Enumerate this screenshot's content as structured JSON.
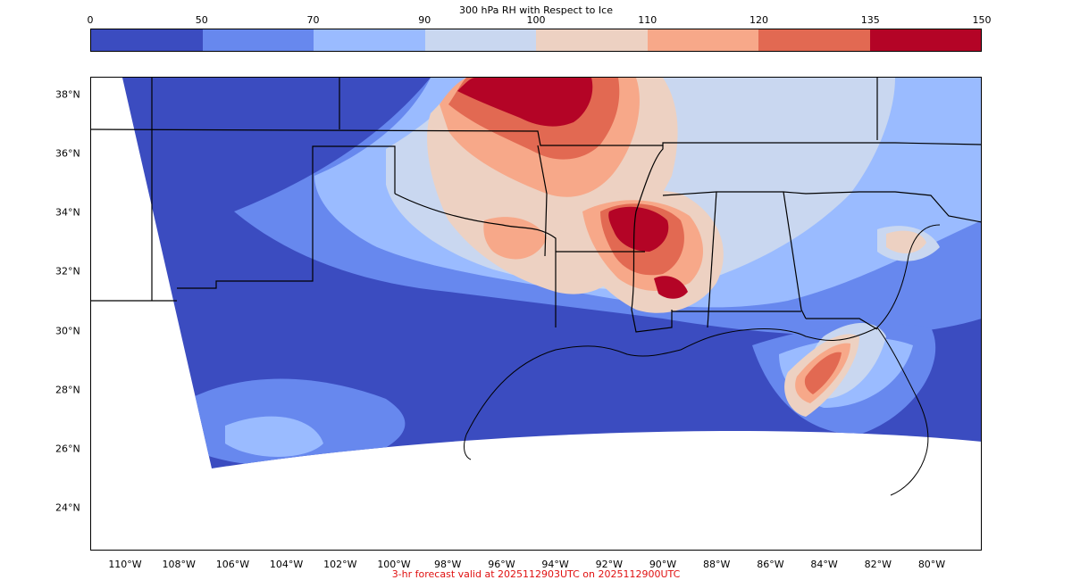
{
  "colorbar": {
    "title": "300 hPa RH with Respect to Ice",
    "levels": [
      "0",
      "50",
      "70",
      "90",
      "100",
      "110",
      "120",
      "135",
      "150"
    ],
    "colors": [
      "#3b4cc0",
      "#6788ee",
      "#9abbff",
      "#c9d7f0",
      "#edd1c2",
      "#f7a889",
      "#e26952",
      "#b40426"
    ]
  },
  "map": {
    "lat_labels": [
      {
        "text": "38°N",
        "lat": 38
      },
      {
        "text": "36°N",
        "lat": 36
      },
      {
        "text": "34°N",
        "lat": 34
      },
      {
        "text": "32°N",
        "lat": 32
      },
      {
        "text": "30°N",
        "lat": 30
      },
      {
        "text": "28°N",
        "lat": 28
      },
      {
        "text": "26°N",
        "lat": 26
      },
      {
        "text": "24°N",
        "lat": 24
      }
    ],
    "lon_labels": [
      {
        "text": "110°W",
        "lon": -110
      },
      {
        "text": "108°W",
        "lon": -108
      },
      {
        "text": "106°W",
        "lon": -106
      },
      {
        "text": "104°W",
        "lon": -104
      },
      {
        "text": "102°W",
        "lon": -102
      },
      {
        "text": "100°W",
        "lon": -100
      },
      {
        "text": "98°W",
        "lon": -98
      },
      {
        "text": "96°W",
        "lon": -96
      },
      {
        "text": "94°W",
        "lon": -94
      },
      {
        "text": "92°W",
        "lon": -92
      },
      {
        "text": "90°W",
        "lon": -90
      },
      {
        "text": "88°W",
        "lon": -88
      },
      {
        "text": "86°W",
        "lon": -86
      },
      {
        "text": "84°W",
        "lon": -84
      },
      {
        "text": "82°W",
        "lon": -82
      },
      {
        "text": "80°W",
        "lon": -80
      }
    ]
  },
  "footer": "3-hr forecast valid at 2025112903UTC on 2025112900UTC"
}
